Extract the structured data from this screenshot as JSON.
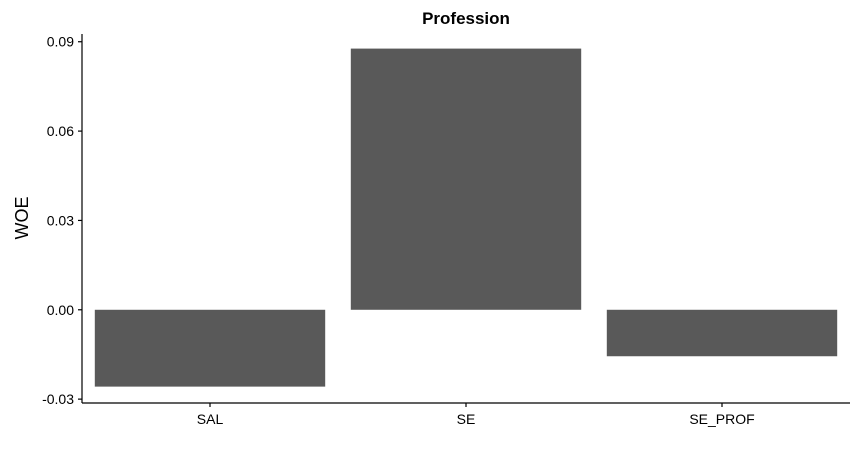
{
  "chart_data": {
    "type": "bar",
    "title": "Profession",
    "xlabel": "",
    "ylabel": "WOE",
    "categories": [
      "SAL",
      "SE",
      "SE_PROF"
    ],
    "values": [
      -0.0258,
      0.0877,
      -0.0156
    ],
    "ylim": [
      -0.0313,
      0.0926
    ],
    "yticks": [
      -0.03,
      0.0,
      0.03,
      0.06,
      0.09
    ],
    "ytick_labels": [
      "-0.03",
      "0.00",
      "0.03",
      "0.06",
      "0.09"
    ],
    "bar_color": "#595959",
    "grid": false,
    "legend": "none"
  }
}
